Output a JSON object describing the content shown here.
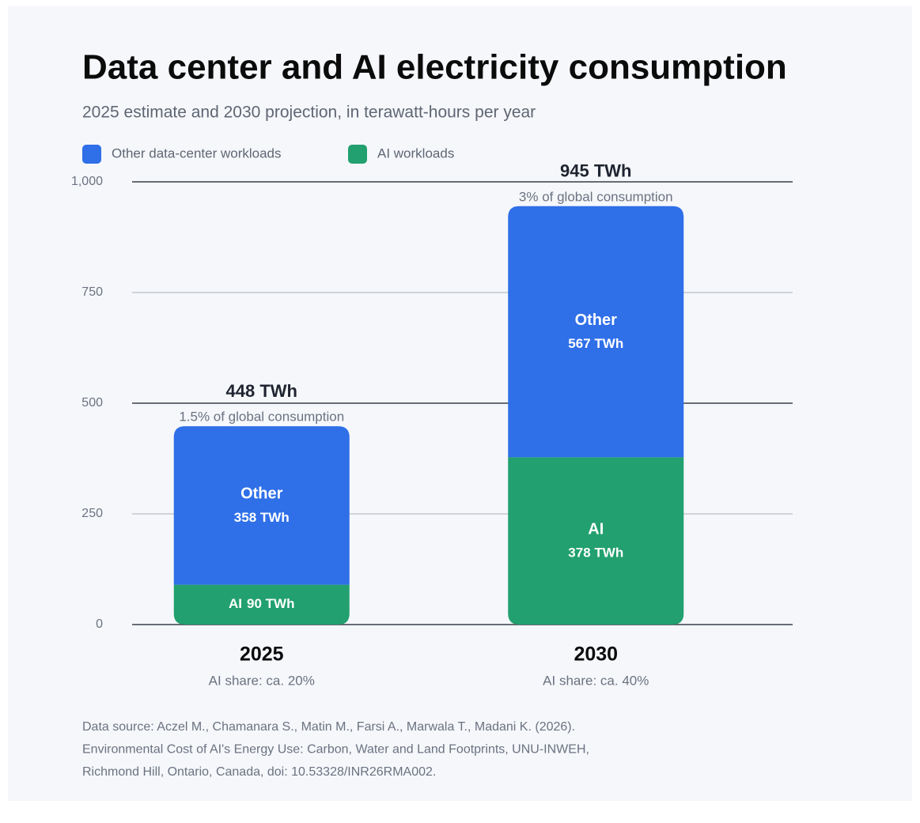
{
  "chart_data": {
    "type": "stacked-bar",
    "title": "Data center and AI electricity consumption",
    "subtitle": "2025 estimate and 2030 projection, in terawatt-hours per year",
    "categories": [
      "2025",
      "2030"
    ],
    "category_notes": [
      "AI share: ca. 20%",
      "AI share: ca. 40%"
    ],
    "series": [
      {
        "name": "AI workloads",
        "label": "AI",
        "color": "#22a06f",
        "values": [
          90,
          378
        ],
        "value_labels": [
          "90 TWh",
          "378 TWh"
        ]
      },
      {
        "name": "Other data-center workloads",
        "label": "Other",
        "color": "#2f6fe8",
        "values": [
          358,
          567
        ],
        "value_labels": [
          "358 TWh",
          "567 TWh"
        ]
      }
    ],
    "legend_order": [
      1,
      0
    ],
    "totals": [
      448,
      945
    ],
    "total_labels": [
      "448 TWh",
      "945 TWh"
    ],
    "annotations": [
      "1.5% of global consumption",
      "3% of global consumption"
    ],
    "ylim": [
      0,
      1000
    ],
    "yticks": [
      0,
      250,
      500,
      750,
      {
        "value": 1000,
        "label": "1,000"
      }
    ],
    "grid": true,
    "legend": "top-left",
    "source": [
      "Data source: Aczel M., Chamanara S., Matin M., Farsi A., Marwala T., Madani K. (2026).",
      "Environmental Cost of AI's Energy Use: Carbon, Water and Land Footprints, UNU-INWEH,",
      "Richmond Hill, Ontario, Canada, doi: 10.53328/INR26RMA002."
    ]
  }
}
